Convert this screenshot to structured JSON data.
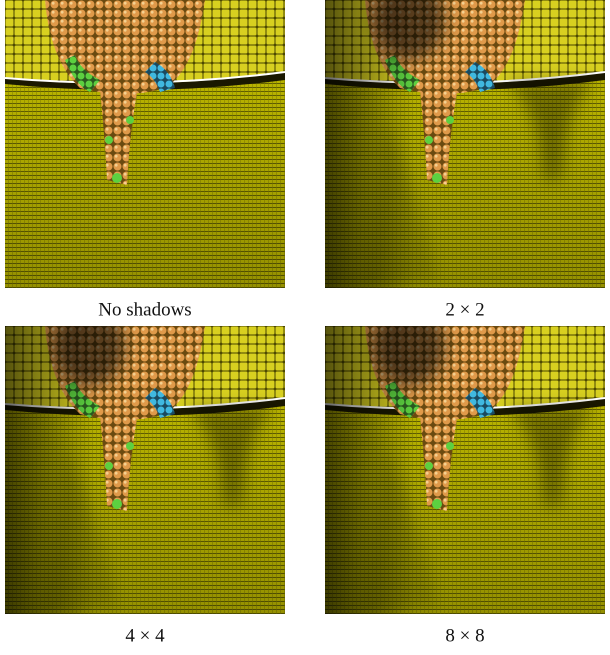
{
  "figure": {
    "panels": [
      {
        "caption": "No shadows"
      },
      {
        "caption": "2 × 2"
      },
      {
        "caption": "4 × 4"
      },
      {
        "caption": "8 × 8"
      }
    ]
  }
}
